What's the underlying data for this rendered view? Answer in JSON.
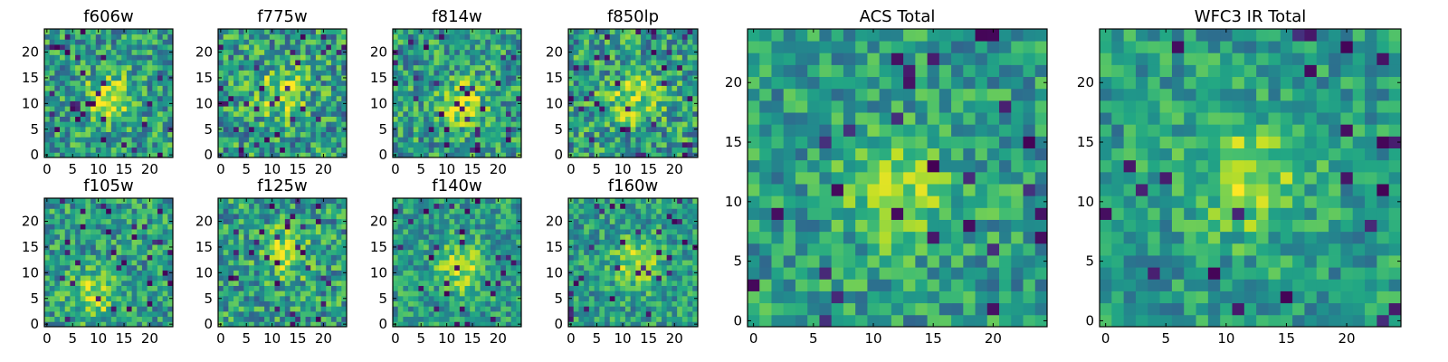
{
  "chart_data": [
    {
      "type": "heatmap",
      "title": "f606w",
      "grid_size": 25,
      "xticks": [
        "0",
        "5",
        "10",
        "15",
        "20"
      ],
      "yticks": [
        "0",
        "5",
        "10",
        "15",
        "20"
      ],
      "xlim": [
        -0.5,
        24.5
      ],
      "ylim": [
        -0.5,
        24.5
      ],
      "colormap": "viridis",
      "value_range": [
        0,
        1
      ],
      "peak": [
        12,
        11
      ],
      "noise": 0.55,
      "seed": 11
    },
    {
      "type": "heatmap",
      "title": "f775w",
      "grid_size": 25,
      "xticks": [
        "0",
        "5",
        "10",
        "15",
        "20"
      ],
      "yticks": [
        "0",
        "5",
        "10",
        "15",
        "20"
      ],
      "xlim": [
        -0.5,
        24.5
      ],
      "ylim": [
        -0.5,
        24.5
      ],
      "colormap": "viridis",
      "value_range": [
        0,
        1
      ],
      "peak": [
        12,
        12
      ],
      "noise": 0.6,
      "seed": 23
    },
    {
      "type": "heatmap",
      "title": "f814w",
      "grid_size": 25,
      "xticks": [
        "0",
        "5",
        "10",
        "15",
        "20"
      ],
      "yticks": [
        "0",
        "5",
        "10",
        "15",
        "20"
      ],
      "xlim": [
        -0.5,
        24.5
      ],
      "ylim": [
        -0.5,
        24.5
      ],
      "colormap": "viridis",
      "value_range": [
        0,
        1
      ],
      "peak": [
        13,
        10
      ],
      "noise": 0.55,
      "seed": 37
    },
    {
      "type": "heatmap",
      "title": "f850lp",
      "grid_size": 25,
      "xticks": [
        "0",
        "5",
        "10",
        "15",
        "20"
      ],
      "yticks": [
        "0",
        "5",
        "10",
        "15",
        "20"
      ],
      "xlim": [
        -0.5,
        24.5
      ],
      "ylim": [
        -0.5,
        24.5
      ],
      "colormap": "viridis",
      "value_range": [
        0,
        1
      ],
      "peak": [
        12,
        11
      ],
      "noise": 0.6,
      "seed": 41
    },
    {
      "type": "heatmap",
      "title": "f105w",
      "grid_size": 25,
      "xticks": [
        "0",
        "5",
        "10",
        "15",
        "20"
      ],
      "yticks": [
        "0",
        "5",
        "10",
        "15",
        "20"
      ],
      "xlim": [
        -0.5,
        24.5
      ],
      "ylim": [
        -0.5,
        24.5
      ],
      "colormap": "viridis",
      "value_range": [
        0,
        1
      ],
      "peak": [
        9,
        6
      ],
      "noise": 0.5,
      "seed": 53
    },
    {
      "type": "heatmap",
      "title": "f125w",
      "grid_size": 25,
      "xticks": [
        "0",
        "5",
        "10",
        "15",
        "20"
      ],
      "yticks": [
        "0",
        "5",
        "10",
        "15",
        "20"
      ],
      "xlim": [
        -0.5,
        24.5
      ],
      "ylim": [
        -0.5,
        24.5
      ],
      "colormap": "viridis",
      "value_range": [
        0,
        1
      ],
      "peak": [
        13,
        14
      ],
      "noise": 0.55,
      "seed": 67
    },
    {
      "type": "heatmap",
      "title": "f140w",
      "grid_size": 25,
      "xticks": [
        "0",
        "5",
        "10",
        "15",
        "20"
      ],
      "yticks": [
        "0",
        "5",
        "10",
        "15",
        "20"
      ],
      "xlim": [
        -0.5,
        24.5
      ],
      "ylim": [
        -0.5,
        24.5
      ],
      "colormap": "viridis",
      "value_range": [
        0,
        1
      ],
      "peak": [
        13,
        11
      ],
      "noise": 0.45,
      "seed": 71
    },
    {
      "type": "heatmap",
      "title": "f160w",
      "grid_size": 25,
      "xticks": [
        "0",
        "5",
        "10",
        "15",
        "20"
      ],
      "yticks": [
        "0",
        "5",
        "10",
        "15",
        "20"
      ],
      "xlim": [
        -0.5,
        24.5
      ],
      "ylim": [
        -0.5,
        24.5
      ],
      "colormap": "viridis",
      "value_range": [
        0,
        1
      ],
      "peak": [
        13,
        12
      ],
      "noise": 0.45,
      "seed": 83
    },
    {
      "type": "heatmap",
      "title": "ACS Total",
      "grid_size": 25,
      "xticks": [
        "0",
        "5",
        "10",
        "15",
        "20"
      ],
      "yticks": [
        "0",
        "5",
        "10",
        "15",
        "20"
      ],
      "xlim": [
        -0.5,
        24.5
      ],
      "ylim": [
        -0.5,
        24.5
      ],
      "colormap": "viridis",
      "value_range": [
        0,
        1
      ],
      "peak": [
        12,
        11
      ],
      "noise": 0.45,
      "seed": 97
    },
    {
      "type": "heatmap",
      "title": "WFC3 IR Total",
      "grid_size": 25,
      "xticks": [
        "0",
        "5",
        "10",
        "15",
        "20"
      ],
      "yticks": [
        "0",
        "5",
        "10",
        "15",
        "20"
      ],
      "xlim": [
        -0.5,
        24.5
      ],
      "ylim": [
        -0.5,
        24.5
      ],
      "colormap": "viridis",
      "value_range": [
        0,
        1
      ],
      "peak": [
        12,
        12
      ],
      "noise": 0.4,
      "seed": 109
    }
  ]
}
